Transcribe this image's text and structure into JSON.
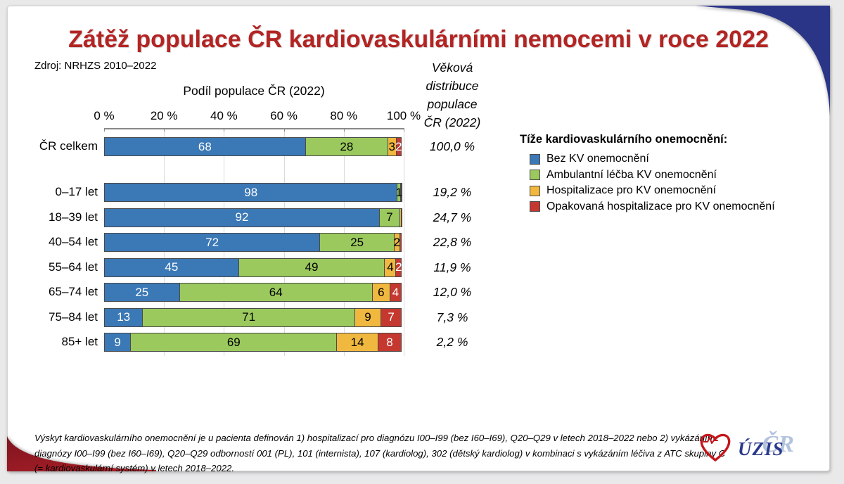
{
  "title": {
    "text": "Zátěž populace ČR kardiovaskulárními nemocemi v roce 2022"
  },
  "source": "Zdroj: NRHZS 2010–2022",
  "colors": {
    "title_red": "#b32423",
    "navy_corner": "#2a3588",
    "curl_red": "#aa1f29",
    "curl_red_dark": "#7e141d",
    "heart_red": "#c4161c",
    "uzis_navy": "#2b3a8c",
    "uzis_cr_blue": "#b3c3dd"
  },
  "chart_data": {
    "type": "stacked-bar-horizontal",
    "axis_title": "Podíl populace ČR (2022)",
    "xticks": [
      "0 %",
      "20 %",
      "40 %",
      "60 %",
      "80 %",
      "100 %"
    ],
    "xlim": [
      0,
      100
    ],
    "grid": true,
    "dist_header_lines": [
      "Věková",
      "distribuce",
      "populace",
      "ČR (2022)"
    ],
    "series_names": [
      "Bez KV onemocnění",
      "Ambulantní léčba KV onemocnění",
      "Hospitalizace pro KV onemocnění",
      "Opakovaná hospitalizace pro KV onemocnění"
    ],
    "series_colors": [
      "#3b78b6",
      "#9bc95e",
      "#f0b83e",
      "#c5382f"
    ],
    "series_label_colors": [
      "#ffffff",
      "#000000",
      "#000000",
      "#ffffff"
    ],
    "rows": [
      {
        "category": "ČR celkem",
        "distribution": "100,0 %",
        "values": [
          68,
          28,
          3,
          2
        ],
        "labels": [
          "68",
          "28",
          "3",
          "2"
        ]
      },
      {
        "category": "0–17 let",
        "distribution": "19,2 %",
        "values": [
          98,
          1.3,
          0.5,
          0.2
        ],
        "labels": [
          "98",
          "1",
          "",
          ""
        ]
      },
      {
        "category": "18–39 let",
        "distribution": "24,7 %",
        "values": [
          92,
          7,
          0.7,
          0.3
        ],
        "labels": [
          "92",
          "7",
          "",
          ""
        ]
      },
      {
        "category": "40–54 let",
        "distribution": "22,8 %",
        "values": [
          72,
          25,
          2,
          0.8
        ],
        "labels": [
          "72",
          "25",
          "2",
          ""
        ]
      },
      {
        "category": "55–64 let",
        "distribution": "11,9 %",
        "values": [
          45,
          49,
          4,
          2
        ],
        "labels": [
          "45",
          "49",
          "4",
          "2"
        ]
      },
      {
        "category": "65–74 let",
        "distribution": "12,0 %",
        "values": [
          25,
          64,
          6,
          4
        ],
        "labels": [
          "25",
          "64",
          "6",
          "4"
        ]
      },
      {
        "category": "75–84 let",
        "distribution": "7,3 %",
        "values": [
          13,
          71,
          9,
          7
        ],
        "labels": [
          "13",
          "71",
          "9",
          "7"
        ]
      },
      {
        "category": "85+ let",
        "distribution": "2,2 %",
        "values": [
          9,
          69,
          14,
          8
        ],
        "labels": [
          "9",
          "69",
          "14",
          "8"
        ]
      }
    ]
  },
  "legend": {
    "title": "Tíže kardiovaskulárního onemocnění:"
  },
  "footer": {
    "lines": [
      "Výskyt kardiovaskulárního onemocnění je u pacienta definován 1) hospitalizací pro diagnózu I00–I99 (bez I60–I69), Q20–Q29 v letech 2018–2022 nebo 2) vykázáním",
      "diagnózy I00–I99 (bez I60–I69), Q20–Q29 odborností 001 (PL), 101 (internista), 107 (kardiolog), 302 (dětský kardiolog) v kombinaci s vykázáním léčiva z ATC skupiny C",
      "(= kardiovaskulární systém) v letech 2018–2022."
    ]
  },
  "logo": {
    "uzis_text": "ÚZIS",
    "cr_text": "ČR"
  }
}
